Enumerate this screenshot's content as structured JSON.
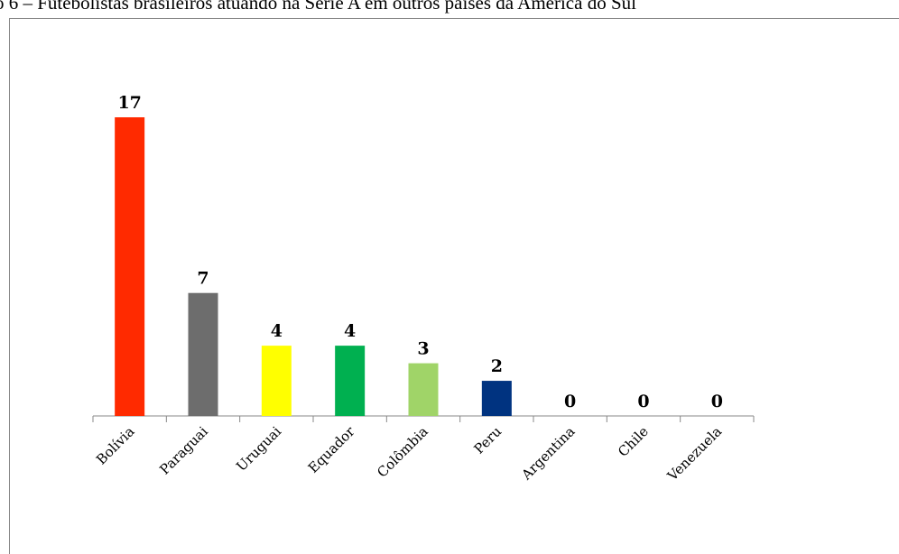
{
  "chart_data": {
    "type": "bar",
    "title": "o 6 – Futebolistas brasileiros atuando na Série A em outros países da América do Sul",
    "categories": [
      "Bolívia",
      "Paraguai",
      "Uruguai",
      "Equador",
      "Colômbia",
      "Peru",
      "Argentina",
      "Chile",
      "Venezuela"
    ],
    "values": [
      17,
      7,
      4,
      4,
      3,
      2,
      0,
      0,
      0
    ],
    "colors": [
      "#ff2a00",
      "#6d6d6d",
      "#ffff00",
      "#00b050",
      "#a0d468",
      "#003380",
      "#000000",
      "#000000",
      "#000000"
    ],
    "ylim": [
      0,
      17
    ]
  }
}
